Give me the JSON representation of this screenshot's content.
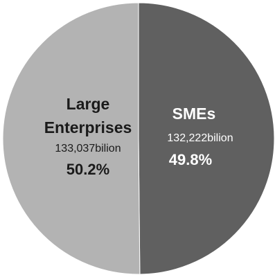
{
  "chart_data": {
    "type": "pie",
    "title": "",
    "start": "top",
    "direction": "clockwise",
    "slices": [
      {
        "name": "SMEs",
        "value": 132222,
        "value_label": "132,222bilion",
        "percent": 49.8,
        "percent_label": "49.8%",
        "color": "#606060"
      },
      {
        "name_lines": [
          "Large",
          "Enterprises"
        ],
        "value": 133037,
        "value_label": "133,037bilion",
        "percent": 50.2,
        "percent_label": "50.2%",
        "color": "#b3b3b3"
      }
    ]
  }
}
